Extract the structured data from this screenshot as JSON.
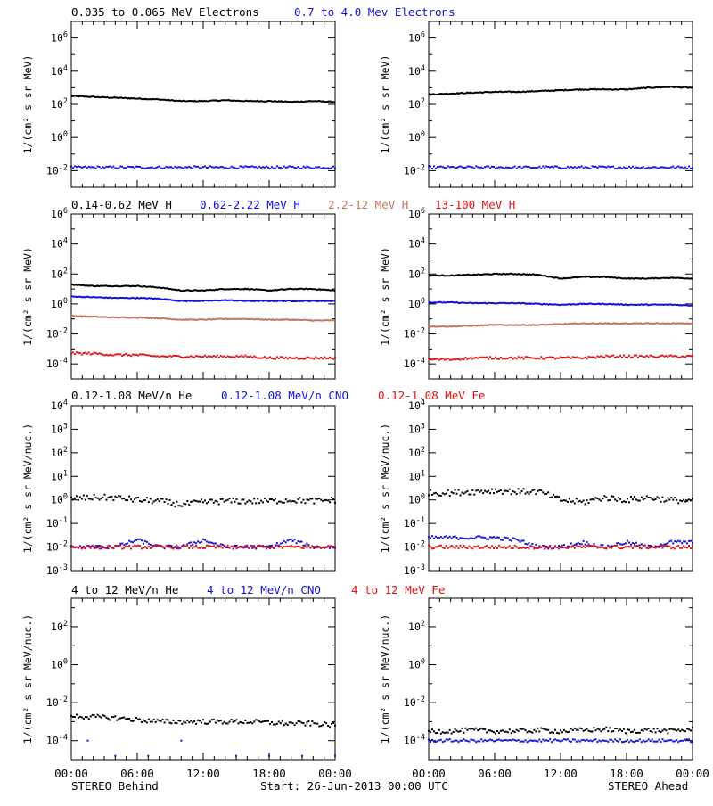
{
  "colors": {
    "black": "#000000",
    "blue": "#1010e0",
    "tan": "#c07860",
    "red": "#e01010"
  },
  "y_label_standard": "1/(cm² s sr MeV)",
  "y_label_nuc": "1/(cm² s sr MeV/nuc.)",
  "x_ticks": [
    "00:00",
    "06:00",
    "12:00",
    "18:00",
    "00:00"
  ],
  "footer": {
    "left": "STEREO Behind",
    "center": "Start: 26-Jun-2013 00:00 UTC",
    "right": "STEREO Ahead"
  },
  "rows": [
    {
      "legend": [
        {
          "text": "0.035 to 0.065 MeV Electrons",
          "color": "black"
        },
        {
          "text": "0.7 to 4.0 Mev Electrons",
          "color": "blue"
        }
      ]
    },
    {
      "legend": [
        {
          "text": "0.14-0.62 MeV H",
          "color": "black"
        },
        {
          "text": "0.62-2.22 MeV H",
          "color": "blue"
        },
        {
          "text": "2.2-12 MeV H",
          "color": "tan"
        },
        {
          "text": "13-100 MeV H",
          "color": "red"
        }
      ]
    },
    {
      "legend": [
        {
          "text": "0.12-1.08 MeV/n He",
          "color": "black"
        },
        {
          "text": "0.12-1.08 MeV/n CNO",
          "color": "blue"
        },
        {
          "text": "0.12-1.08 MeV Fe",
          "color": "red"
        }
      ]
    },
    {
      "legend": [
        {
          "text": "4 to 12 MeV/n He",
          "color": "black"
        },
        {
          "text": "4 to 12 MeV/n CNO",
          "color": "blue"
        },
        {
          "text": "4 to 12 MeV Fe",
          "color": "red"
        }
      ]
    }
  ],
  "chart_data": [
    {
      "type": "line",
      "panel": "electrons-behind",
      "x_unit": "hours since start",
      "xlim": [
        0,
        24
      ],
      "ylim": [
        -3,
        7
      ],
      "y_scale": "log10",
      "yticks": [
        -2,
        0,
        2,
        4,
        6
      ],
      "ylabel": "1/(cm² s sr MeV)",
      "series": [
        {
          "name": "0.035 to 0.065 MeV Electrons",
          "color": "black",
          "style": "line",
          "x": [
            0,
            2,
            4,
            6,
            8,
            10,
            12,
            14,
            16,
            18,
            20,
            22,
            24
          ],
          "logy": [
            2.5,
            2.45,
            2.4,
            2.35,
            2.3,
            2.2,
            2.2,
            2.25,
            2.2,
            2.2,
            2.15,
            2.2,
            2.15
          ]
        },
        {
          "name": "0.7 to 4.0 Mev Electrons",
          "color": "blue",
          "style": "scatter",
          "x": [
            0,
            2,
            4,
            6,
            8,
            10,
            12,
            14,
            16,
            18,
            20,
            22,
            24
          ],
          "logy": [
            -1.8,
            -1.8,
            -1.8,
            -1.8,
            -1.8,
            -1.8,
            -1.8,
            -1.8,
            -1.8,
            -1.8,
            -1.8,
            -1.8,
            -1.8
          ]
        }
      ]
    },
    {
      "type": "line",
      "panel": "electrons-ahead",
      "x_unit": "hours since start",
      "xlim": [
        0,
        24
      ],
      "ylim": [
        -3,
        7
      ],
      "y_scale": "log10",
      "yticks": [
        -2,
        0,
        2,
        4,
        6
      ],
      "ylabel": "1/(cm² s sr MeV)",
      "series": [
        {
          "name": "0.035 to 0.065 MeV Electrons",
          "color": "black",
          "style": "line",
          "x": [
            0,
            2,
            4,
            6,
            8,
            10,
            12,
            14,
            16,
            18,
            20,
            22,
            24
          ],
          "logy": [
            2.6,
            2.65,
            2.7,
            2.75,
            2.75,
            2.8,
            2.85,
            2.9,
            2.9,
            2.9,
            3.0,
            3.05,
            3.0
          ]
        },
        {
          "name": "0.7 to 4.0 Mev Electrons",
          "color": "blue",
          "style": "scatter",
          "x": [
            0,
            2,
            4,
            6,
            8,
            10,
            12,
            14,
            16,
            18,
            20,
            22,
            24
          ],
          "logy": [
            -1.8,
            -1.8,
            -1.8,
            -1.8,
            -1.8,
            -1.8,
            -1.8,
            -1.8,
            -1.8,
            -1.8,
            -1.8,
            -1.8,
            -1.8
          ]
        }
      ]
    },
    {
      "type": "line",
      "panel": "protons-behind",
      "x_unit": "hours since start",
      "xlim": [
        0,
        24
      ],
      "ylim": [
        -5,
        6
      ],
      "y_scale": "log10",
      "yticks": [
        -4,
        -2,
        0,
        2,
        4,
        6
      ],
      "ylabel": "1/(cm² s sr MeV)",
      "series": [
        {
          "name": "0.14-0.62 MeV H",
          "color": "black",
          "style": "line",
          "x": [
            0,
            2,
            4,
            6,
            8,
            10,
            12,
            14,
            16,
            18,
            20,
            22,
            24
          ],
          "logy": [
            1.3,
            1.2,
            1.2,
            1.2,
            1.1,
            0.9,
            0.9,
            1.0,
            1.0,
            0.9,
            1.0,
            1.0,
            0.9
          ]
        },
        {
          "name": "0.62-2.22 MeV H",
          "color": "blue",
          "style": "line",
          "x": [
            0,
            2,
            4,
            6,
            8,
            10,
            12,
            14,
            16,
            18,
            20,
            22,
            24
          ],
          "logy": [
            0.5,
            0.45,
            0.4,
            0.4,
            0.35,
            0.2,
            0.2,
            0.25,
            0.2,
            0.2,
            0.2,
            0.2,
            0.2
          ]
        },
        {
          "name": "2.2-12 MeV H",
          "color": "tan",
          "style": "line",
          "x": [
            0,
            2,
            4,
            6,
            8,
            10,
            12,
            14,
            16,
            18,
            20,
            22,
            24
          ],
          "logy": [
            -0.8,
            -0.85,
            -0.9,
            -0.9,
            -0.95,
            -1.05,
            -1.05,
            -1.0,
            -1.0,
            -1.05,
            -1.05,
            -1.1,
            -1.1
          ]
        },
        {
          "name": "13-100 MeV H",
          "color": "red",
          "style": "scatter",
          "x": [
            0,
            2,
            4,
            6,
            8,
            10,
            12,
            14,
            16,
            18,
            20,
            22,
            24
          ],
          "logy": [
            -3.3,
            -3.3,
            -3.4,
            -3.4,
            -3.5,
            -3.5,
            -3.5,
            -3.5,
            -3.5,
            -3.6,
            -3.6,
            -3.6,
            -3.6
          ]
        }
      ]
    },
    {
      "type": "line",
      "panel": "protons-ahead",
      "x_unit": "hours since start",
      "xlim": [
        0,
        24
      ],
      "ylim": [
        -5,
        6
      ],
      "y_scale": "log10",
      "yticks": [
        -4,
        -2,
        0,
        2,
        4,
        6
      ],
      "ylabel": "1/(cm² s sr MeV)",
      "series": [
        {
          "name": "0.14-0.62 MeV H",
          "color": "black",
          "style": "line",
          "x": [
            0,
            2,
            4,
            6,
            8,
            10,
            12,
            14,
            16,
            18,
            20,
            22,
            24
          ],
          "logy": [
            1.9,
            1.9,
            1.95,
            2.0,
            2.0,
            1.95,
            1.7,
            1.8,
            1.8,
            1.7,
            1.7,
            1.75,
            1.7
          ]
        },
        {
          "name": "0.62-2.22 MeV H",
          "color": "blue",
          "style": "line",
          "x": [
            0,
            2,
            4,
            6,
            8,
            10,
            12,
            14,
            16,
            18,
            20,
            22,
            24
          ],
          "logy": [
            0.1,
            0.1,
            0.05,
            0.05,
            0.05,
            0.0,
            -0.05,
            0.0,
            0.0,
            -0.05,
            -0.05,
            -0.05,
            -0.1
          ]
        },
        {
          "name": "2.2-12 MeV H",
          "color": "tan",
          "style": "line",
          "x": [
            0,
            2,
            4,
            6,
            8,
            10,
            12,
            14,
            16,
            18,
            20,
            22,
            24
          ],
          "logy": [
            -1.5,
            -1.5,
            -1.45,
            -1.4,
            -1.4,
            -1.4,
            -1.35,
            -1.3,
            -1.3,
            -1.3,
            -1.3,
            -1.3,
            -1.3
          ]
        },
        {
          "name": "13-100 MeV H",
          "color": "red",
          "style": "scatter",
          "x": [
            0,
            2,
            4,
            6,
            8,
            10,
            12,
            14,
            16,
            18,
            20,
            22,
            24
          ],
          "logy": [
            -3.7,
            -3.7,
            -3.6,
            -3.6,
            -3.6,
            -3.6,
            -3.6,
            -3.6,
            -3.5,
            -3.5,
            -3.5,
            -3.5,
            -3.5
          ]
        }
      ]
    },
    {
      "type": "scatter",
      "panel": "heavy-low-behind",
      "x_unit": "hours since start",
      "xlim": [
        0,
        24
      ],
      "ylim": [
        -3,
        4
      ],
      "y_scale": "log10",
      "yticks": [
        -3,
        -2,
        -1,
        0,
        1,
        2,
        3,
        4
      ],
      "ylabel": "1/(cm² s sr MeV/nuc.)",
      "series": [
        {
          "name": "0.12-1.08 MeV/n He",
          "color": "black",
          "style": "scatter",
          "x": [
            0,
            2,
            4,
            6,
            8,
            10,
            12,
            14,
            16,
            18,
            20,
            22,
            24
          ],
          "logy": [
            0.05,
            0.1,
            0.1,
            0.0,
            -0.05,
            -0.2,
            -0.1,
            -0.05,
            -0.05,
            -0.05,
            0.0,
            -0.05,
            0.0
          ]
        },
        {
          "name": "0.12-1.08 MeV/n CNO",
          "color": "blue",
          "style": "scatter",
          "x": [
            0,
            2,
            4,
            6,
            8,
            10,
            12,
            14,
            16,
            18,
            20,
            22,
            24
          ],
          "logy": [
            -2.0,
            -2.0,
            -2.0,
            -1.7,
            -2.0,
            -2.0,
            -1.7,
            -2.0,
            -2.0,
            -2.0,
            -1.7,
            -2.0,
            -2.0
          ]
        },
        {
          "name": "0.12-1.08 MeV Fe",
          "color": "red",
          "style": "scatter",
          "x": [
            0,
            2,
            4,
            6,
            8,
            10,
            12,
            14,
            16,
            18,
            20,
            22,
            24
          ],
          "logy": [
            -2.0,
            -2.0,
            -2.0,
            -2.0,
            -2.0,
            -2.0,
            -2.0,
            -2.0,
            -2.0,
            -2.0,
            -2.0,
            -2.0,
            -2.0
          ]
        }
      ]
    },
    {
      "type": "scatter",
      "panel": "heavy-low-ahead",
      "x_unit": "hours since start",
      "xlim": [
        0,
        24
      ],
      "ylim": [
        -3,
        4
      ],
      "y_scale": "log10",
      "yticks": [
        -3,
        -2,
        -1,
        0,
        1,
        2,
        3,
        4
      ],
      "ylabel": "1/(cm² s sr MeV/nuc.)",
      "series": [
        {
          "name": "0.12-1.08 MeV/n He",
          "color": "black",
          "style": "scatter",
          "x": [
            0,
            2,
            4,
            6,
            8,
            10,
            12,
            14,
            16,
            18,
            20,
            22,
            24
          ],
          "logy": [
            0.3,
            0.3,
            0.35,
            0.4,
            0.35,
            0.35,
            0.0,
            -0.1,
            0.1,
            0.0,
            0.1,
            0.0,
            -0.05
          ]
        },
        {
          "name": "0.12-1.08 MeV/n CNO",
          "color": "blue",
          "style": "scatter",
          "x": [
            0,
            2,
            4,
            6,
            8,
            10,
            12,
            14,
            16,
            18,
            20,
            22,
            24
          ],
          "logy": [
            -1.6,
            -1.6,
            -1.6,
            -1.6,
            -1.7,
            -2.0,
            -2.0,
            -1.8,
            -2.0,
            -1.8,
            -2.0,
            -1.8,
            -1.8
          ]
        },
        {
          "name": "0.12-1.08 MeV Fe",
          "color": "red",
          "style": "scatter",
          "x": [
            0,
            2,
            4,
            6,
            8,
            10,
            12,
            14,
            16,
            18,
            20,
            22,
            24
          ],
          "logy": [
            -2.0,
            -2.0,
            -2.0,
            -2.0,
            -2.0,
            -2.0,
            -2.0,
            -2.0,
            -2.0,
            -2.0,
            -2.0,
            -2.0,
            -2.0
          ]
        }
      ]
    },
    {
      "type": "scatter",
      "panel": "heavy-high-behind",
      "x_unit": "hours since start",
      "xlim": [
        0,
        24
      ],
      "ylim": [
        -5,
        3.5
      ],
      "y_scale": "log10",
      "yticks": [
        -4,
        -2,
        0,
        2
      ],
      "ylabel": "1/(cm² s sr MeV/nuc.)",
      "series": [
        {
          "name": "4 to 12 MeV/n He",
          "color": "black",
          "style": "scatter",
          "x": [
            0,
            2,
            4,
            6,
            8,
            10,
            12,
            14,
            16,
            18,
            20,
            22,
            24
          ],
          "logy": [
            -2.7,
            -2.75,
            -2.8,
            -2.9,
            -3.0,
            -3.0,
            -3.0,
            -3.0,
            -3.0,
            -3.05,
            -3.1,
            -3.1,
            -3.2
          ]
        },
        {
          "name": "4 to 12 MeV/n CNO",
          "color": "blue",
          "style": "scatter",
          "x": [
            1.5,
            4,
            7,
            10,
            15,
            18,
            21,
            24
          ],
          "logy": [
            -4.0,
            -4.8,
            -4.8,
            -4.0,
            -4.8,
            -4.8,
            -4.8,
            -4.8
          ]
        },
        {
          "name": "4 to 12 MeV Fe",
          "color": "red",
          "style": "scatter",
          "x": [],
          "logy": []
        }
      ]
    },
    {
      "type": "scatter",
      "panel": "heavy-high-ahead",
      "x_unit": "hours since start",
      "xlim": [
        0,
        24
      ],
      "ylim": [
        -5,
        3.5
      ],
      "y_scale": "log10",
      "yticks": [
        -4,
        -2,
        0,
        2
      ],
      "ylabel": "1/(cm² s sr MeV/nuc.)",
      "series": [
        {
          "name": "4 to 12 MeV/n He",
          "color": "black",
          "style": "scatter",
          "x": [
            0,
            2,
            4,
            6,
            8,
            10,
            12,
            14,
            16,
            18,
            20,
            22,
            24
          ],
          "logy": [
            -3.5,
            -3.5,
            -3.45,
            -3.5,
            -3.5,
            -3.45,
            -3.5,
            -3.45,
            -3.4,
            -3.5,
            -3.45,
            -3.5,
            -3.4
          ]
        },
        {
          "name": "4 to 12 MeV/n CNO",
          "color": "blue",
          "style": "scatter",
          "x": [
            0,
            2,
            4,
            6,
            8,
            10,
            12,
            14,
            16,
            18,
            20,
            22,
            24
          ],
          "logy": [
            -4.0,
            -4.0,
            -4.0,
            -4.0,
            -4.0,
            -4.0,
            -4.0,
            -4.0,
            -4.0,
            -4.0,
            -4.0,
            -4.0,
            -4.0
          ]
        },
        {
          "name": "4 to 12 MeV Fe",
          "color": "red",
          "style": "scatter",
          "x": [
            15.5
          ],
          "logy": [
            -5.0
          ]
        }
      ]
    }
  ]
}
